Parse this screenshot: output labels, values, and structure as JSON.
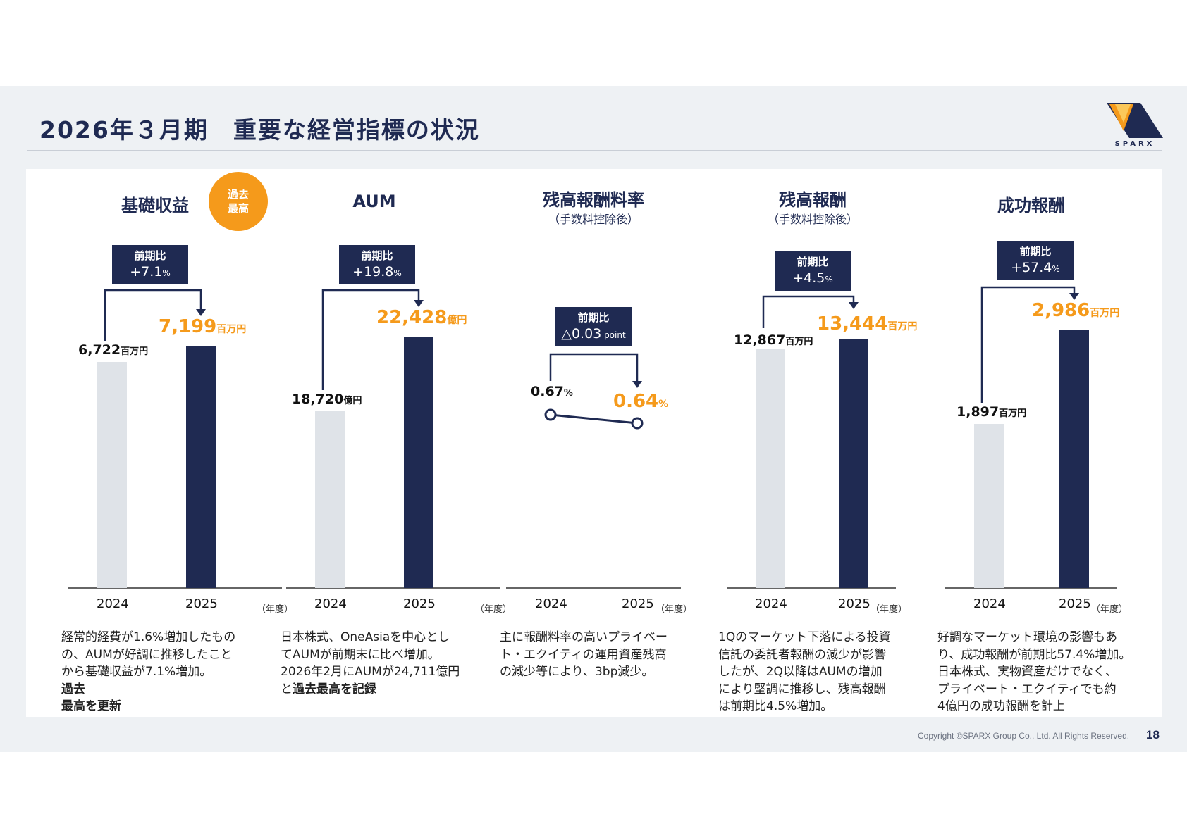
{
  "title": "2026年３月期　重要な経営指標の状況",
  "brand": {
    "logo_text": "SPARX",
    "navy": "#1f2a52",
    "orange": "#f59a1b",
    "light_gray": "#dfe3e8"
  },
  "footer": {
    "copyright": "Copyright ©SPARX Group Co., Ltd. All Rights Reserved.",
    "page_number": "18"
  },
  "badge": {
    "line1": "過去",
    "line2": "最高"
  },
  "year_unit": "（年度）",
  "change_label": "前期比",
  "chart_data": [
    {
      "type": "bar",
      "title": "基礎収益",
      "categories": [
        "2024",
        "2025"
      ],
      "values": [
        6722,
        7199
      ],
      "value_labels": [
        "6,722",
        "7,199"
      ],
      "unit": "百万円",
      "change": "+7.1",
      "change_unit": "%",
      "description": [
        "経常的経費が1.6%増加したもの",
        "の、AUMが好調に推移したこと",
        "から基礎収益が7.1%増加。",
        "過去",
        "最高を更新"
      ]
    },
    {
      "type": "bar",
      "title": "AUM",
      "categories": [
        "2024",
        "2025"
      ],
      "values": [
        18720,
        22428
      ],
      "value_labels": [
        "18,720",
        "22,428"
      ],
      "unit": "億円",
      "change": "+19.8",
      "change_unit": "%",
      "description": [
        "日本株式、OneAsiaを中心とし",
        "てAUMが前期末に比べ増加。",
        "2026年2月にAUMが24,711億円",
        "と",
        "過去最高を記録"
      ]
    },
    {
      "type": "line",
      "title": "残高報酬料率",
      "subtitle": "（手数料控除後）",
      "categories": [
        "2024",
        "2025"
      ],
      "values": [
        0.67,
        0.64
      ],
      "value_labels": [
        "0.67",
        "0.64"
      ],
      "unit": "%",
      "change": "△0.03",
      "change_unit": " point",
      "description": [
        "主に報酬料率の高いプライベー",
        "ト・エクイティの運用資産残高",
        "の減少等により、3bp減少。"
      ]
    },
    {
      "type": "bar",
      "title": "残高報酬",
      "subtitle": "（手数料控除後）",
      "categories": [
        "2024",
        "2025"
      ],
      "values": [
        12867,
        13444
      ],
      "value_labels": [
        "12,867",
        "13,444"
      ],
      "unit": "百万円",
      "change": "+4.5",
      "change_unit": "%",
      "description": [
        "1Qのマーケット下落による投資",
        "信託の委託者報酬の減少が影響",
        "したが、2Q以降はAUMの増加",
        "により堅調に推移し、残高報酬",
        "は前期比4.5%増加。"
      ]
    },
    {
      "type": "bar",
      "title": "成功報酬",
      "categories": [
        "2024",
        "2025"
      ],
      "values": [
        1897,
        2986
      ],
      "value_labels": [
        "1,897",
        "2,986"
      ],
      "unit": "百万円",
      "change": "+57.4",
      "change_unit": "%",
      "description": [
        "好調なマーケット環境の影響もあ",
        "り、成功報酬が前期比57.4%増加。",
        "日本株式、実物資産だけでなく、",
        "プライベート・エクイティでも約",
        "4億円の成功報酬を計上"
      ]
    }
  ]
}
